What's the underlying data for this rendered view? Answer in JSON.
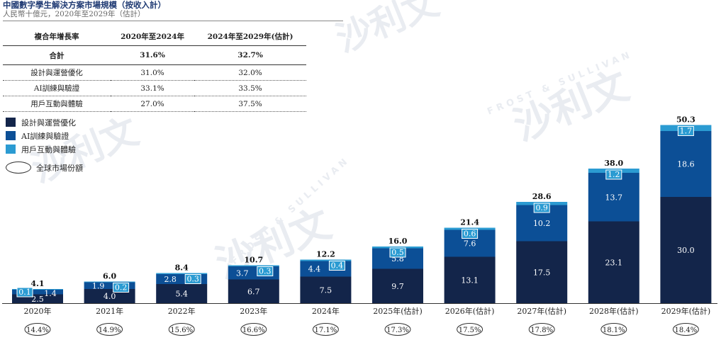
{
  "header": {
    "title": "中國數字學生解決方案市場規模（按收入計）",
    "subtitle": "人民幣十億元，2020年至2029年（估計）"
  },
  "cagr_table": {
    "columns": [
      "複合年增長率",
      "2020年至2024年",
      "2024年至2029年(估計)"
    ],
    "total": {
      "label": "合計",
      "v1": "31.6%",
      "v2": "32.7%"
    },
    "rows": [
      {
        "label": "設計與運營優化",
        "v1": "31.0%",
        "v2": "32.0%"
      },
      {
        "label": "AI訓練與驗證",
        "v1": "33.1%",
        "v2": "33.5%"
      },
      {
        "label": "用戶互動與體驗",
        "v1": "27.0%",
        "v2": "37.5%"
      }
    ]
  },
  "legend": {
    "items": [
      {
        "label": "設計與運營優化",
        "color": "#13254a"
      },
      {
        "label": "AI訓練與驗證",
        "color": "#0c4f96"
      },
      {
        "label": "用戶互動與體驗",
        "color": "#2b9bd2"
      }
    ],
    "oval_label": "全球市場份額"
  },
  "watermark": {
    "text": "沙利文",
    "sub": "FROST & SULLIVAN"
  },
  "chart_data": {
    "type": "bar",
    "stacked": true,
    "categories": [
      "2020年",
      "2021年",
      "2022年",
      "2023年",
      "2024年",
      "2025年(估計)",
      "2026年(估計)",
      "2027年(估計)",
      "2028年(估計)",
      "2029年(估計)"
    ],
    "series": [
      {
        "name": "設計與運營優化",
        "color": "#13254a",
        "values": [
          2.5,
          4.0,
          5.4,
          6.7,
          7.5,
          9.7,
          13.1,
          17.5,
          23.1,
          30.0
        ]
      },
      {
        "name": "AI訓練與驗證",
        "color": "#0c4f96",
        "values": [
          1.4,
          1.9,
          2.8,
          3.7,
          4.4,
          5.8,
          7.6,
          10.2,
          13.7,
          18.6
        ]
      },
      {
        "name": "用戶互動與體驗",
        "color": "#2b9bd2",
        "values": [
          0.1,
          0.2,
          0.3,
          0.3,
          0.4,
          0.5,
          0.6,
          0.9,
          1.2,
          1.7
        ]
      }
    ],
    "totals": [
      4.1,
      6.0,
      8.4,
      10.7,
      12.2,
      16.0,
      21.4,
      28.6,
      38.0,
      50.3
    ],
    "global_share": [
      "14.4%",
      "14.9%",
      "15.6%",
      "16.6%",
      "17.1%",
      "17.3%",
      "17.5%",
      "17.8%",
      "18.1%",
      "18.4%"
    ],
    "ylim": [
      0,
      52
    ]
  }
}
